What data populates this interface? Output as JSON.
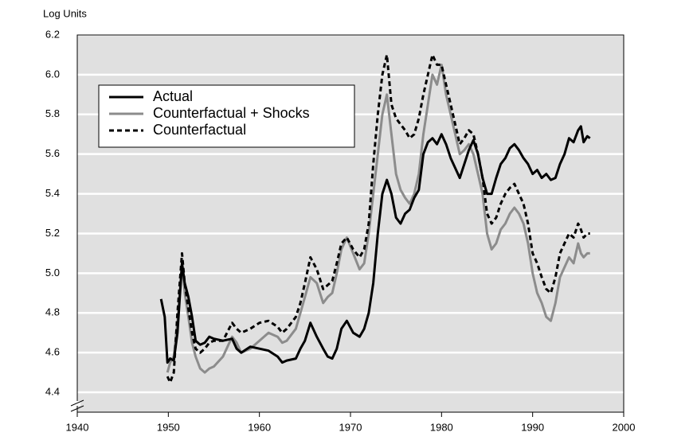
{
  "chart_data": {
    "type": "line",
    "y_label": "Log Units",
    "x": [
      1949.2,
      1949.6,
      1949.9,
      1950.2,
      1950.6,
      1951.0,
      1951.5,
      1951.8,
      1952.2,
      1952.6,
      1953.0,
      1953.5,
      1954,
      1954.5,
      1955,
      1956,
      1957,
      1957.5,
      1958,
      1959,
      1960,
      1961,
      1962,
      1962.5,
      1963,
      1964,
      1964.5,
      1965,
      1965.6,
      1966.3,
      1967,
      1967.5,
      1968,
      1968.5,
      1969,
      1969.6,
      1970.3,
      1971,
      1971.5,
      1972,
      1972.5,
      1973,
      1973.5,
      1974,
      1974.5,
      1975,
      1975.5,
      1976,
      1976.5,
      1977,
      1977.5,
      1978,
      1978.5,
      1979,
      1979.5,
      1980,
      1980.5,
      1981,
      1982,
      1982.5,
      1983,
      1983.5,
      1984,
      1984.5,
      1985,
      1985.5,
      1986,
      1986.5,
      1987,
      1987.5,
      1988,
      1988.5,
      1989,
      1989.5,
      1990,
      1990.5,
      1991,
      1991.5,
      1992,
      1992.5,
      1993,
      1993.5,
      1994,
      1994.5,
      1995,
      1995.3,
      1995.6,
      1996,
      1996.3
    ],
    "series": [
      {
        "name": "Actual",
        "color": "#000000",
        "dashed": false,
        "values": [
          4.87,
          4.78,
          4.55,
          4.57,
          4.56,
          4.7,
          5.05,
          4.95,
          4.88,
          4.78,
          4.66,
          4.64,
          4.65,
          4.68,
          4.67,
          4.66,
          4.67,
          4.62,
          4.6,
          4.63,
          4.62,
          4.61,
          4.58,
          4.55,
          4.56,
          4.57,
          4.62,
          4.66,
          4.75,
          4.68,
          4.62,
          4.58,
          4.57,
          4.62,
          4.72,
          4.76,
          4.7,
          4.68,
          4.72,
          4.8,
          4.95,
          5.2,
          5.4,
          5.47,
          5.4,
          5.28,
          5.25,
          5.3,
          5.32,
          5.38,
          5.42,
          5.6,
          5.66,
          5.68,
          5.65,
          5.7,
          5.65,
          5.58,
          5.48,
          5.55,
          5.62,
          5.67,
          5.6,
          5.48,
          5.4,
          5.4,
          5.48,
          5.55,
          5.58,
          5.63,
          5.65,
          5.62,
          5.58,
          5.55,
          5.5,
          5.52,
          5.48,
          5.5,
          5.47,
          5.48,
          5.55,
          5.6,
          5.68,
          5.66,
          5.72,
          5.74,
          5.66,
          5.69,
          5.68
        ]
      },
      {
        "name": "Counterfactual + Shocks",
        "color": "#8c8c8c",
        "dashed": false,
        "values": [
          null,
          null,
          4.5,
          4.55,
          4.58,
          4.75,
          5.05,
          4.9,
          4.78,
          4.65,
          4.58,
          4.52,
          4.5,
          4.52,
          4.53,
          4.58,
          4.68,
          4.65,
          4.6,
          4.62,
          4.66,
          4.7,
          4.68,
          4.65,
          4.66,
          4.72,
          4.8,
          4.88,
          4.98,
          4.95,
          4.85,
          4.88,
          4.9,
          5.0,
          5.12,
          5.18,
          5.1,
          5.02,
          5.05,
          5.2,
          5.4,
          5.6,
          5.8,
          5.9,
          5.7,
          5.5,
          5.42,
          5.38,
          5.35,
          5.4,
          5.5,
          5.7,
          5.85,
          6.0,
          5.95,
          6.05,
          5.9,
          5.8,
          5.6,
          5.62,
          5.65,
          5.6,
          5.5,
          5.4,
          5.2,
          5.12,
          5.15,
          5.22,
          5.25,
          5.3,
          5.33,
          5.3,
          5.25,
          5.15,
          5.0,
          4.9,
          4.85,
          4.78,
          4.76,
          4.85,
          4.98,
          5.03,
          5.08,
          5.05,
          5.15,
          5.1,
          5.08,
          5.1,
          5.1
        ]
      },
      {
        "name": "Counterfactual",
        "color": "#000000",
        "dashed": true,
        "values": [
          null,
          null,
          4.48,
          4.45,
          4.5,
          4.8,
          5.1,
          4.95,
          4.82,
          4.7,
          4.62,
          4.6,
          4.62,
          4.65,
          4.66,
          4.66,
          4.75,
          4.72,
          4.7,
          4.72,
          4.75,
          4.76,
          4.73,
          4.7,
          4.72,
          4.78,
          4.85,
          4.95,
          5.08,
          5.02,
          4.92,
          4.94,
          4.96,
          5.05,
          5.15,
          5.18,
          5.12,
          5.08,
          5.12,
          5.25,
          5.55,
          5.8,
          6.0,
          6.1,
          5.85,
          5.78,
          5.75,
          5.72,
          5.68,
          5.7,
          5.78,
          5.9,
          6.0,
          6.1,
          6.05,
          6.05,
          5.95,
          5.85,
          5.65,
          5.68,
          5.72,
          5.7,
          5.6,
          5.48,
          5.3,
          5.25,
          5.28,
          5.35,
          5.4,
          5.43,
          5.45,
          5.4,
          5.35,
          5.25,
          5.1,
          5.05,
          4.98,
          4.92,
          4.9,
          4.98,
          5.1,
          5.15,
          5.2,
          5.18,
          5.25,
          5.22,
          5.18,
          5.2,
          5.2
        ]
      }
    ],
    "xlim": [
      1940,
      2000
    ],
    "xticks": [
      1940,
      1950,
      1960,
      1970,
      1980,
      1990,
      2000
    ],
    "ylim": [
      4.3,
      6.2
    ],
    "yticks": [
      4.4,
      4.6,
      4.8,
      {
        "value": 5,
        "label": "5.0"
      },
      5.2,
      5.4,
      5.6,
      5.8,
      {
        "value": 6,
        "label": "6.0"
      },
      6.2
    ],
    "grid": true,
    "legend": "upper left"
  }
}
